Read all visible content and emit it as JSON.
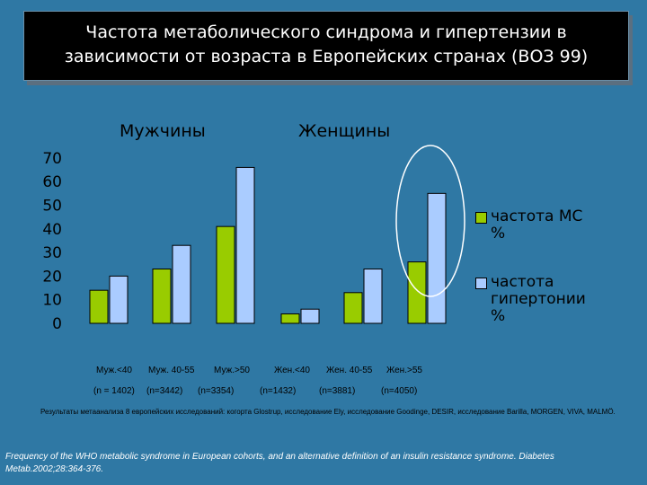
{
  "title": {
    "line1": "Частота метаболического синдрома и гипертензии в",
    "line2": "зависимости от возраста в Европейских странах (ВОЗ 99)"
  },
  "groups": {
    "men": "Мужчины",
    "women": "Женщины"
  },
  "chart_data": {
    "type": "bar",
    "categories": [
      "Муж.<40",
      "Муж. 40-55",
      "Муж.>50",
      "Жен.<40",
      "Жен. 40-55",
      "Жен.>55"
    ],
    "sample_sizes": [
      "(n = 1402)",
      "(n=3442)",
      "(n=3354)",
      "(n=1432)",
      "(n=3881)",
      "(n=4050)"
    ],
    "series": [
      {
        "name": "частота МС %",
        "values": [
          14,
          23,
          41,
          4,
          13,
          26
        ],
        "color": "#99cc00"
      },
      {
        "name": "частота гипертонии %",
        "values": [
          20,
          33,
          66,
          6,
          23,
          55
        ],
        "color": "#aaccff"
      }
    ],
    "ylim": [
      0,
      70
    ],
    "yticks": [
      "0",
      "10",
      "20",
      "30",
      "40",
      "50",
      "60",
      "70"
    ],
    "legend": "right",
    "annotation": "ellipse highlighting Жен.>55 bars"
  },
  "legend": {
    "ms_line1": "частота МС",
    "ms_line2": "%",
    "ht_line1": "частота",
    "ht_line2": "гипертонии",
    "ht_line3": "%"
  },
  "note": "Результаты метаанализа 8 европейских исследований: когорта Glostrup, исследование Ely, исследование Goodinge, DESIR, исследование Barilla, MORGEN, VIVA, MALMÖ.",
  "source": "Frequency of the WHO metabolic syndrome in European cohorts, and an alternative definition of an insulin resistance syndrome. Diabetes Metab.2002;28:364-376."
}
